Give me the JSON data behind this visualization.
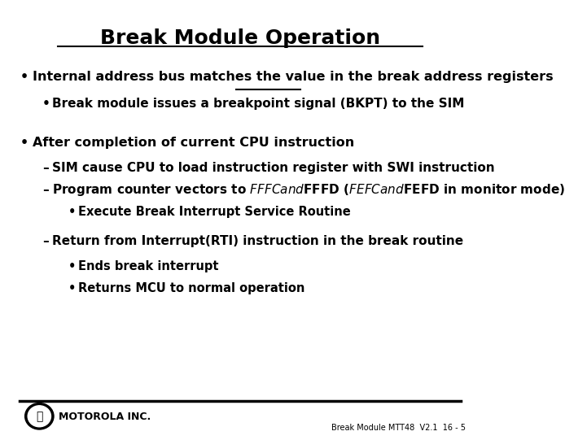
{
  "title": "Break Module Operation",
  "background_color": "#ffffff",
  "border_color": "#000000",
  "title_fontsize": 18,
  "body_fontsize": 11,
  "footer_text": "Break Module MTT48  V2.1  16 - 5",
  "motorola_text": "MOTOROLA INC.",
  "content": [
    {
      "level": 0,
      "bullet": "•",
      "text": "Internal address bus matches the value in the break address registers"
    },
    {
      "level": 1,
      "bullet": "•",
      "text": "Break module issues a breakpoint signal (BKPT) to the SIM"
    },
    {
      "level": 0,
      "bullet": "•",
      "text": "After completion of current CPU instruction"
    },
    {
      "level": 1,
      "bullet": "–",
      "text": "SIM cause CPU to load instruction register with SWI instruction"
    },
    {
      "level": 1,
      "bullet": "–",
      "text": "Program counter vectors to $FFFC and $FFFD ($FEFC and $FEFD in monitor mode)"
    },
    {
      "level": 2,
      "bullet": "•",
      "text": "Execute Break Interrupt Service Routine"
    },
    {
      "level": 1,
      "bullet": "–",
      "text": "Return from Interrupt(RTI) instruction in the break routine"
    },
    {
      "level": 2,
      "bullet": "•",
      "text": "Ends break interrupt"
    },
    {
      "level": 2,
      "bullet": "•",
      "text": "Returns MCU to normal operation"
    }
  ]
}
